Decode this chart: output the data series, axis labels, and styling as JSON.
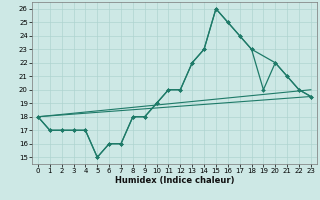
{
  "title": "",
  "xlabel": "Humidex (Indice chaleur)",
  "xlim": [
    -0.5,
    23.5
  ],
  "ylim": [
    14.5,
    26.5
  ],
  "xticks": [
    0,
    1,
    2,
    3,
    4,
    5,
    6,
    7,
    8,
    9,
    10,
    11,
    12,
    13,
    14,
    15,
    16,
    17,
    18,
    19,
    20,
    21,
    22,
    23
  ],
  "yticks": [
    15,
    16,
    17,
    18,
    19,
    20,
    21,
    22,
    23,
    24,
    25,
    26
  ],
  "bg_color": "#cde8e5",
  "grid_color": "#afd4d0",
  "line_color": "#1e7a68",
  "lines": [
    {
      "x": [
        0,
        1,
        2,
        3,
        4,
        5,
        6,
        7,
        8,
        9,
        10,
        11,
        12,
        13,
        14,
        15,
        16,
        17,
        18,
        20,
        21,
        22,
        23
      ],
      "y": [
        18,
        17,
        17,
        17,
        17,
        15,
        16,
        16,
        18,
        18,
        19,
        20,
        20,
        22,
        23,
        26,
        25,
        24,
        23,
        22,
        21,
        20,
        19.5
      ]
    },
    {
      "x": [
        0,
        1,
        2,
        3,
        4,
        5,
        6,
        7,
        8,
        9,
        10,
        11,
        12,
        13,
        14,
        15,
        16,
        17,
        18,
        19,
        20,
        21,
        22,
        23
      ],
      "y": [
        18,
        17,
        17,
        17,
        17,
        15,
        16,
        16,
        18,
        18,
        19,
        20,
        20,
        22,
        23,
        26,
        25,
        24,
        23,
        20,
        22,
        21,
        20,
        19.5
      ]
    },
    {
      "x": [
        0,
        23
      ],
      "y": [
        18,
        20
      ]
    },
    {
      "comment": "straight line 2 - from 0,18 to 23,19.5",
      "x": [
        0,
        23
      ],
      "y": [
        18,
        19.5
      ]
    }
  ]
}
